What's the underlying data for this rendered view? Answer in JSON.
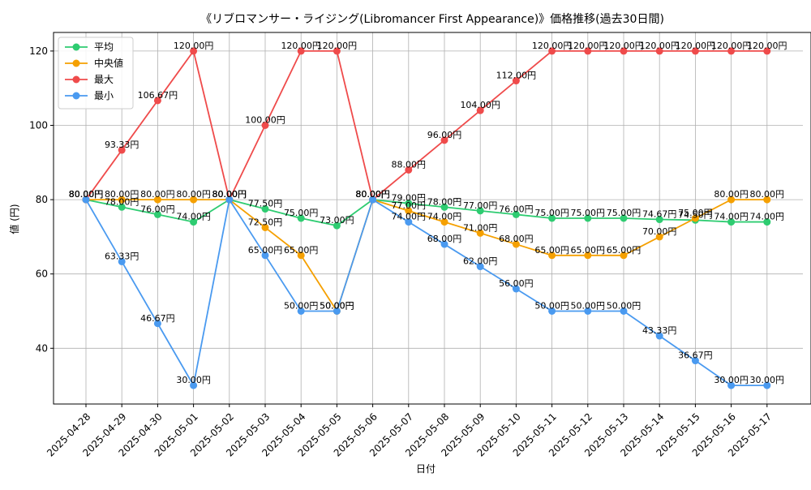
{
  "chart_data": {
    "type": "line",
    "title": "《リブロマンサー・ライジング(Libromancer First Appearance)》価格推移(過去30日間)",
    "xlabel": "日付",
    "ylabel": "値 (円)",
    "categories": [
      "2025-04-28",
      "2025-04-29",
      "2025-04-30",
      "2025-05-01",
      "2025-05-02",
      "2025-05-03",
      "2025-05-04",
      "2025-05-05",
      "2025-05-06",
      "2025-05-07",
      "2025-05-08",
      "2025-05-09",
      "2025-05-10",
      "2025-05-11",
      "2025-05-12",
      "2025-05-13",
      "2025-05-14",
      "2025-05-15",
      "2025-05-16",
      "2025-05-17"
    ],
    "ylim": [
      25,
      125
    ],
    "yticks": [
      40,
      60,
      80,
      100,
      120
    ],
    "grid": true,
    "legend_position": "top-left",
    "value_suffix": "円",
    "series": [
      {
        "name": "平均",
        "color": "#2ecc71",
        "values": [
          80.0,
          78.0,
          76.0,
          74.0,
          80.0,
          77.5,
          75.0,
          73.0,
          80.0,
          79.0,
          78.0,
          77.0,
          76.0,
          75.0,
          75.0,
          75.0,
          74.67,
          74.5,
          74.0,
          74.0
        ]
      },
      {
        "name": "中央値",
        "color": "#f5a000",
        "values": [
          80.0,
          80.0,
          80.0,
          80.0,
          80.0,
          72.5,
          65.0,
          50.0,
          80.0,
          77.0,
          74.0,
          71.0,
          68.0,
          65.0,
          65.0,
          65.0,
          70.0,
          75.0,
          80.0,
          80.0
        ]
      },
      {
        "name": "最大",
        "color": "#ef4b4b",
        "values": [
          80.0,
          93.33,
          106.67,
          120.0,
          80.0,
          100.0,
          120.0,
          120.0,
          80.0,
          88.0,
          96.0,
          104.0,
          112.0,
          120.0,
          120.0,
          120.0,
          120.0,
          120.0,
          120.0,
          120.0
        ]
      },
      {
        "name": "最小",
        "color": "#4a9af0",
        "values": [
          80.0,
          63.33,
          46.67,
          30.0,
          80.0,
          65.0,
          50.0,
          50.0,
          80.0,
          74.0,
          68.0,
          62.0,
          56.0,
          50.0,
          50.0,
          50.0,
          43.33,
          36.67,
          30.0,
          30.0
        ]
      }
    ]
  }
}
